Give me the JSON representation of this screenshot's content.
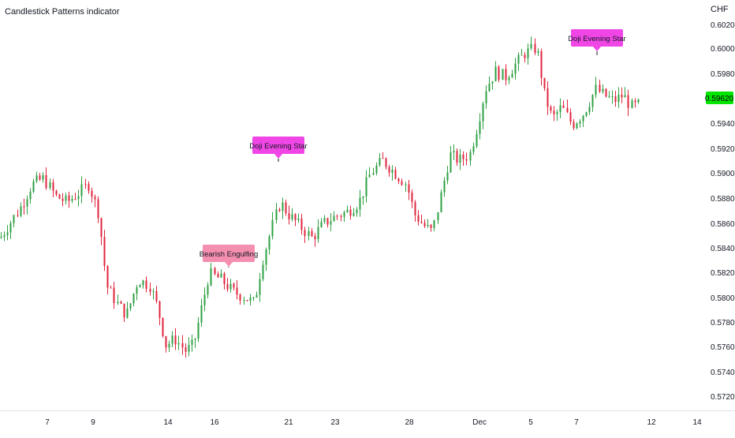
{
  "header": {
    "indicator_title": "Candlestick Patterns indicator",
    "currency": "CHF"
  },
  "colors": {
    "up": "#26a69a",
    "down": "#ef5350",
    "up_candle": "#2ea043",
    "down_candle": "#e0243d",
    "last_price_bg": "#00e600",
    "label_magenta": "#f046e6",
    "label_pink": "#f58fb0",
    "axis_text": "#131722"
  },
  "chart_data": {
    "type": "candlestick",
    "title": "Candlestick Patterns indicator",
    "ylim": [
      0.5715,
      0.603
    ],
    "y_ticks": [
      "0.60200",
      "0.60000",
      "0.59800",
      "0.59400",
      "0.59200",
      "0.59000",
      "0.58800",
      "0.58600",
      "0.58400",
      "0.58200",
      "0.58000",
      "0.57800",
      "0.57600",
      "0.57400",
      "0.57200"
    ],
    "last_price": "0.59620",
    "x_tick_labels": [
      "7",
      "9",
      "14",
      "16",
      "21",
      "23",
      "28",
      "Dec",
      "5",
      "7",
      "12",
      "14"
    ],
    "close_path_anchors": [
      [
        0,
        0.585
      ],
      [
        10,
        0.586
      ],
      [
        25,
        0.5875
      ],
      [
        40,
        0.5895
      ],
      [
        55,
        0.59
      ],
      [
        70,
        0.5885
      ],
      [
        85,
        0.588
      ],
      [
        100,
        0.5888
      ],
      [
        112,
        0.5895
      ],
      [
        125,
        0.587
      ],
      [
        135,
        0.581
      ],
      [
        148,
        0.5795
      ],
      [
        160,
        0.5785
      ],
      [
        175,
        0.5815
      ],
      [
        190,
        0.581
      ],
      [
        200,
        0.579
      ],
      [
        210,
        0.576
      ],
      [
        222,
        0.5765
      ],
      [
        235,
        0.5755
      ],
      [
        245,
        0.576
      ],
      [
        255,
        0.579
      ],
      [
        265,
        0.582
      ],
      [
        280,
        0.5815
      ],
      [
        295,
        0.5805
      ],
      [
        310,
        0.58
      ],
      [
        322,
        0.5795
      ],
      [
        332,
        0.583
      ],
      [
        345,
        0.586
      ],
      [
        355,
        0.588
      ],
      [
        365,
        0.587
      ],
      [
        380,
        0.586
      ],
      [
        395,
        0.585
      ],
      [
        410,
        0.5862
      ],
      [
        425,
        0.5868
      ],
      [
        440,
        0.5872
      ],
      [
        455,
        0.588
      ],
      [
        470,
        0.5905
      ],
      [
        485,
        0.5915
      ],
      [
        500,
        0.5905
      ],
      [
        515,
        0.5895
      ],
      [
        525,
        0.587
      ],
      [
        538,
        0.586
      ],
      [
        548,
        0.5855
      ],
      [
        560,
        0.589
      ],
      [
        570,
        0.592
      ],
      [
        582,
        0.5915
      ],
      [
        595,
        0.592
      ],
      [
        605,
        0.5945
      ],
      [
        615,
        0.5975
      ],
      [
        628,
        0.599
      ],
      [
        640,
        0.5985
      ],
      [
        652,
        0.5995
      ],
      [
        665,
        0.6005
      ],
      [
        680,
        0.601
      ],
      [
        690,
        0.597
      ],
      [
        700,
        0.595
      ],
      [
        712,
        0.596
      ],
      [
        725,
        0.5945
      ],
      [
        740,
        0.5955
      ],
      [
        755,
        0.5975
      ],
      [
        765,
        0.597
      ],
      [
        778,
        0.5965
      ],
      [
        790,
        0.597
      ],
      [
        800,
        0.596
      ],
      [
        810,
        0.5962
      ]
    ],
    "annotations": [
      {
        "text": "Bearish Engulfing",
        "pattern": "bearish"
      },
      {
        "text": "Doji Evening Star",
        "pattern": "doji"
      },
      {
        "text": "Doji Evening Star",
        "pattern": "doji"
      }
    ]
  }
}
